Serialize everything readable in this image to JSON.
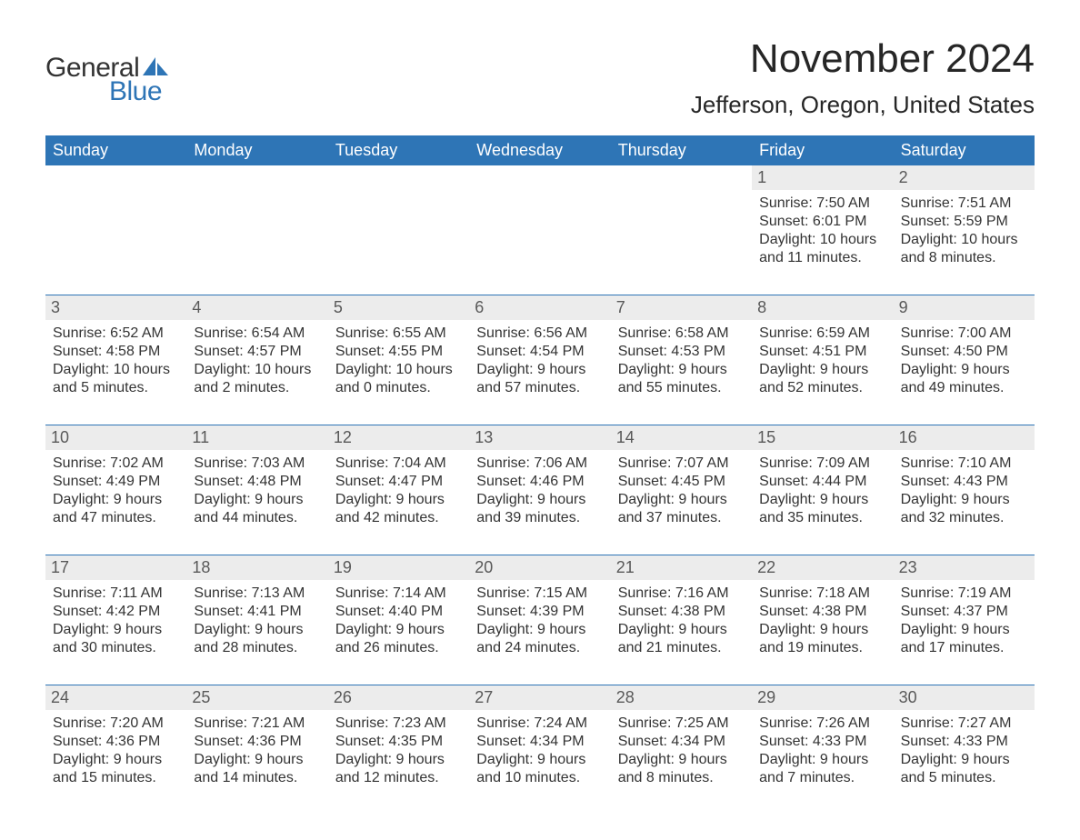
{
  "logo": {
    "text_general": "General",
    "text_blue": "Blue",
    "sail_color": "#2e75b6",
    "text_color_general": "#333333",
    "text_color_blue": "#2e75b6"
  },
  "header": {
    "month_title": "November 2024",
    "location": "Jefferson, Oregon, United States"
  },
  "colors": {
    "header_bg": "#2e75b6",
    "header_text": "#ffffff",
    "daynum_bg": "#ececec",
    "daynum_text": "#595959",
    "body_text": "#333333",
    "row_border": "#2e75b6",
    "page_bg": "#ffffff"
  },
  "weekdays": [
    "Sunday",
    "Monday",
    "Tuesday",
    "Wednesday",
    "Thursday",
    "Friday",
    "Saturday"
  ],
  "weeks": [
    [
      {
        "empty": true
      },
      {
        "empty": true
      },
      {
        "empty": true
      },
      {
        "empty": true
      },
      {
        "empty": true
      },
      {
        "day": "1",
        "sunrise": "Sunrise: 7:50 AM",
        "sunset": "Sunset: 6:01 PM",
        "daylight1": "Daylight: 10 hours",
        "daylight2": "and 11 minutes."
      },
      {
        "day": "2",
        "sunrise": "Sunrise: 7:51 AM",
        "sunset": "Sunset: 5:59 PM",
        "daylight1": "Daylight: 10 hours",
        "daylight2": "and 8 minutes."
      }
    ],
    [
      {
        "day": "3",
        "sunrise": "Sunrise: 6:52 AM",
        "sunset": "Sunset: 4:58 PM",
        "daylight1": "Daylight: 10 hours",
        "daylight2": "and 5 minutes."
      },
      {
        "day": "4",
        "sunrise": "Sunrise: 6:54 AM",
        "sunset": "Sunset: 4:57 PM",
        "daylight1": "Daylight: 10 hours",
        "daylight2": "and 2 minutes."
      },
      {
        "day": "5",
        "sunrise": "Sunrise: 6:55 AM",
        "sunset": "Sunset: 4:55 PM",
        "daylight1": "Daylight: 10 hours",
        "daylight2": "and 0 minutes."
      },
      {
        "day": "6",
        "sunrise": "Sunrise: 6:56 AM",
        "sunset": "Sunset: 4:54 PM",
        "daylight1": "Daylight: 9 hours",
        "daylight2": "and 57 minutes."
      },
      {
        "day": "7",
        "sunrise": "Sunrise: 6:58 AM",
        "sunset": "Sunset: 4:53 PM",
        "daylight1": "Daylight: 9 hours",
        "daylight2": "and 55 minutes."
      },
      {
        "day": "8",
        "sunrise": "Sunrise: 6:59 AM",
        "sunset": "Sunset: 4:51 PM",
        "daylight1": "Daylight: 9 hours",
        "daylight2": "and 52 minutes."
      },
      {
        "day": "9",
        "sunrise": "Sunrise: 7:00 AM",
        "sunset": "Sunset: 4:50 PM",
        "daylight1": "Daylight: 9 hours",
        "daylight2": "and 49 minutes."
      }
    ],
    [
      {
        "day": "10",
        "sunrise": "Sunrise: 7:02 AM",
        "sunset": "Sunset: 4:49 PM",
        "daylight1": "Daylight: 9 hours",
        "daylight2": "and 47 minutes."
      },
      {
        "day": "11",
        "sunrise": "Sunrise: 7:03 AM",
        "sunset": "Sunset: 4:48 PM",
        "daylight1": "Daylight: 9 hours",
        "daylight2": "and 44 minutes."
      },
      {
        "day": "12",
        "sunrise": "Sunrise: 7:04 AM",
        "sunset": "Sunset: 4:47 PM",
        "daylight1": "Daylight: 9 hours",
        "daylight2": "and 42 minutes."
      },
      {
        "day": "13",
        "sunrise": "Sunrise: 7:06 AM",
        "sunset": "Sunset: 4:46 PM",
        "daylight1": "Daylight: 9 hours",
        "daylight2": "and 39 minutes."
      },
      {
        "day": "14",
        "sunrise": "Sunrise: 7:07 AM",
        "sunset": "Sunset: 4:45 PM",
        "daylight1": "Daylight: 9 hours",
        "daylight2": "and 37 minutes."
      },
      {
        "day": "15",
        "sunrise": "Sunrise: 7:09 AM",
        "sunset": "Sunset: 4:44 PM",
        "daylight1": "Daylight: 9 hours",
        "daylight2": "and 35 minutes."
      },
      {
        "day": "16",
        "sunrise": "Sunrise: 7:10 AM",
        "sunset": "Sunset: 4:43 PM",
        "daylight1": "Daylight: 9 hours",
        "daylight2": "and 32 minutes."
      }
    ],
    [
      {
        "day": "17",
        "sunrise": "Sunrise: 7:11 AM",
        "sunset": "Sunset: 4:42 PM",
        "daylight1": "Daylight: 9 hours",
        "daylight2": "and 30 minutes."
      },
      {
        "day": "18",
        "sunrise": "Sunrise: 7:13 AM",
        "sunset": "Sunset: 4:41 PM",
        "daylight1": "Daylight: 9 hours",
        "daylight2": "and 28 minutes."
      },
      {
        "day": "19",
        "sunrise": "Sunrise: 7:14 AM",
        "sunset": "Sunset: 4:40 PM",
        "daylight1": "Daylight: 9 hours",
        "daylight2": "and 26 minutes."
      },
      {
        "day": "20",
        "sunrise": "Sunrise: 7:15 AM",
        "sunset": "Sunset: 4:39 PM",
        "daylight1": "Daylight: 9 hours",
        "daylight2": "and 24 minutes."
      },
      {
        "day": "21",
        "sunrise": "Sunrise: 7:16 AM",
        "sunset": "Sunset: 4:38 PM",
        "daylight1": "Daylight: 9 hours",
        "daylight2": "and 21 minutes."
      },
      {
        "day": "22",
        "sunrise": "Sunrise: 7:18 AM",
        "sunset": "Sunset: 4:38 PM",
        "daylight1": "Daylight: 9 hours",
        "daylight2": "and 19 minutes."
      },
      {
        "day": "23",
        "sunrise": "Sunrise: 7:19 AM",
        "sunset": "Sunset: 4:37 PM",
        "daylight1": "Daylight: 9 hours",
        "daylight2": "and 17 minutes."
      }
    ],
    [
      {
        "day": "24",
        "sunrise": "Sunrise: 7:20 AM",
        "sunset": "Sunset: 4:36 PM",
        "daylight1": "Daylight: 9 hours",
        "daylight2": "and 15 minutes."
      },
      {
        "day": "25",
        "sunrise": "Sunrise: 7:21 AM",
        "sunset": "Sunset: 4:36 PM",
        "daylight1": "Daylight: 9 hours",
        "daylight2": "and 14 minutes."
      },
      {
        "day": "26",
        "sunrise": "Sunrise: 7:23 AM",
        "sunset": "Sunset: 4:35 PM",
        "daylight1": "Daylight: 9 hours",
        "daylight2": "and 12 minutes."
      },
      {
        "day": "27",
        "sunrise": "Sunrise: 7:24 AM",
        "sunset": "Sunset: 4:34 PM",
        "daylight1": "Daylight: 9 hours",
        "daylight2": "and 10 minutes."
      },
      {
        "day": "28",
        "sunrise": "Sunrise: 7:25 AM",
        "sunset": "Sunset: 4:34 PM",
        "daylight1": "Daylight: 9 hours",
        "daylight2": "and 8 minutes."
      },
      {
        "day": "29",
        "sunrise": "Sunrise: 7:26 AM",
        "sunset": "Sunset: 4:33 PM",
        "daylight1": "Daylight: 9 hours",
        "daylight2": "and 7 minutes."
      },
      {
        "day": "30",
        "sunrise": "Sunrise: 7:27 AM",
        "sunset": "Sunset: 4:33 PM",
        "daylight1": "Daylight: 9 hours",
        "daylight2": "and 5 minutes."
      }
    ]
  ]
}
